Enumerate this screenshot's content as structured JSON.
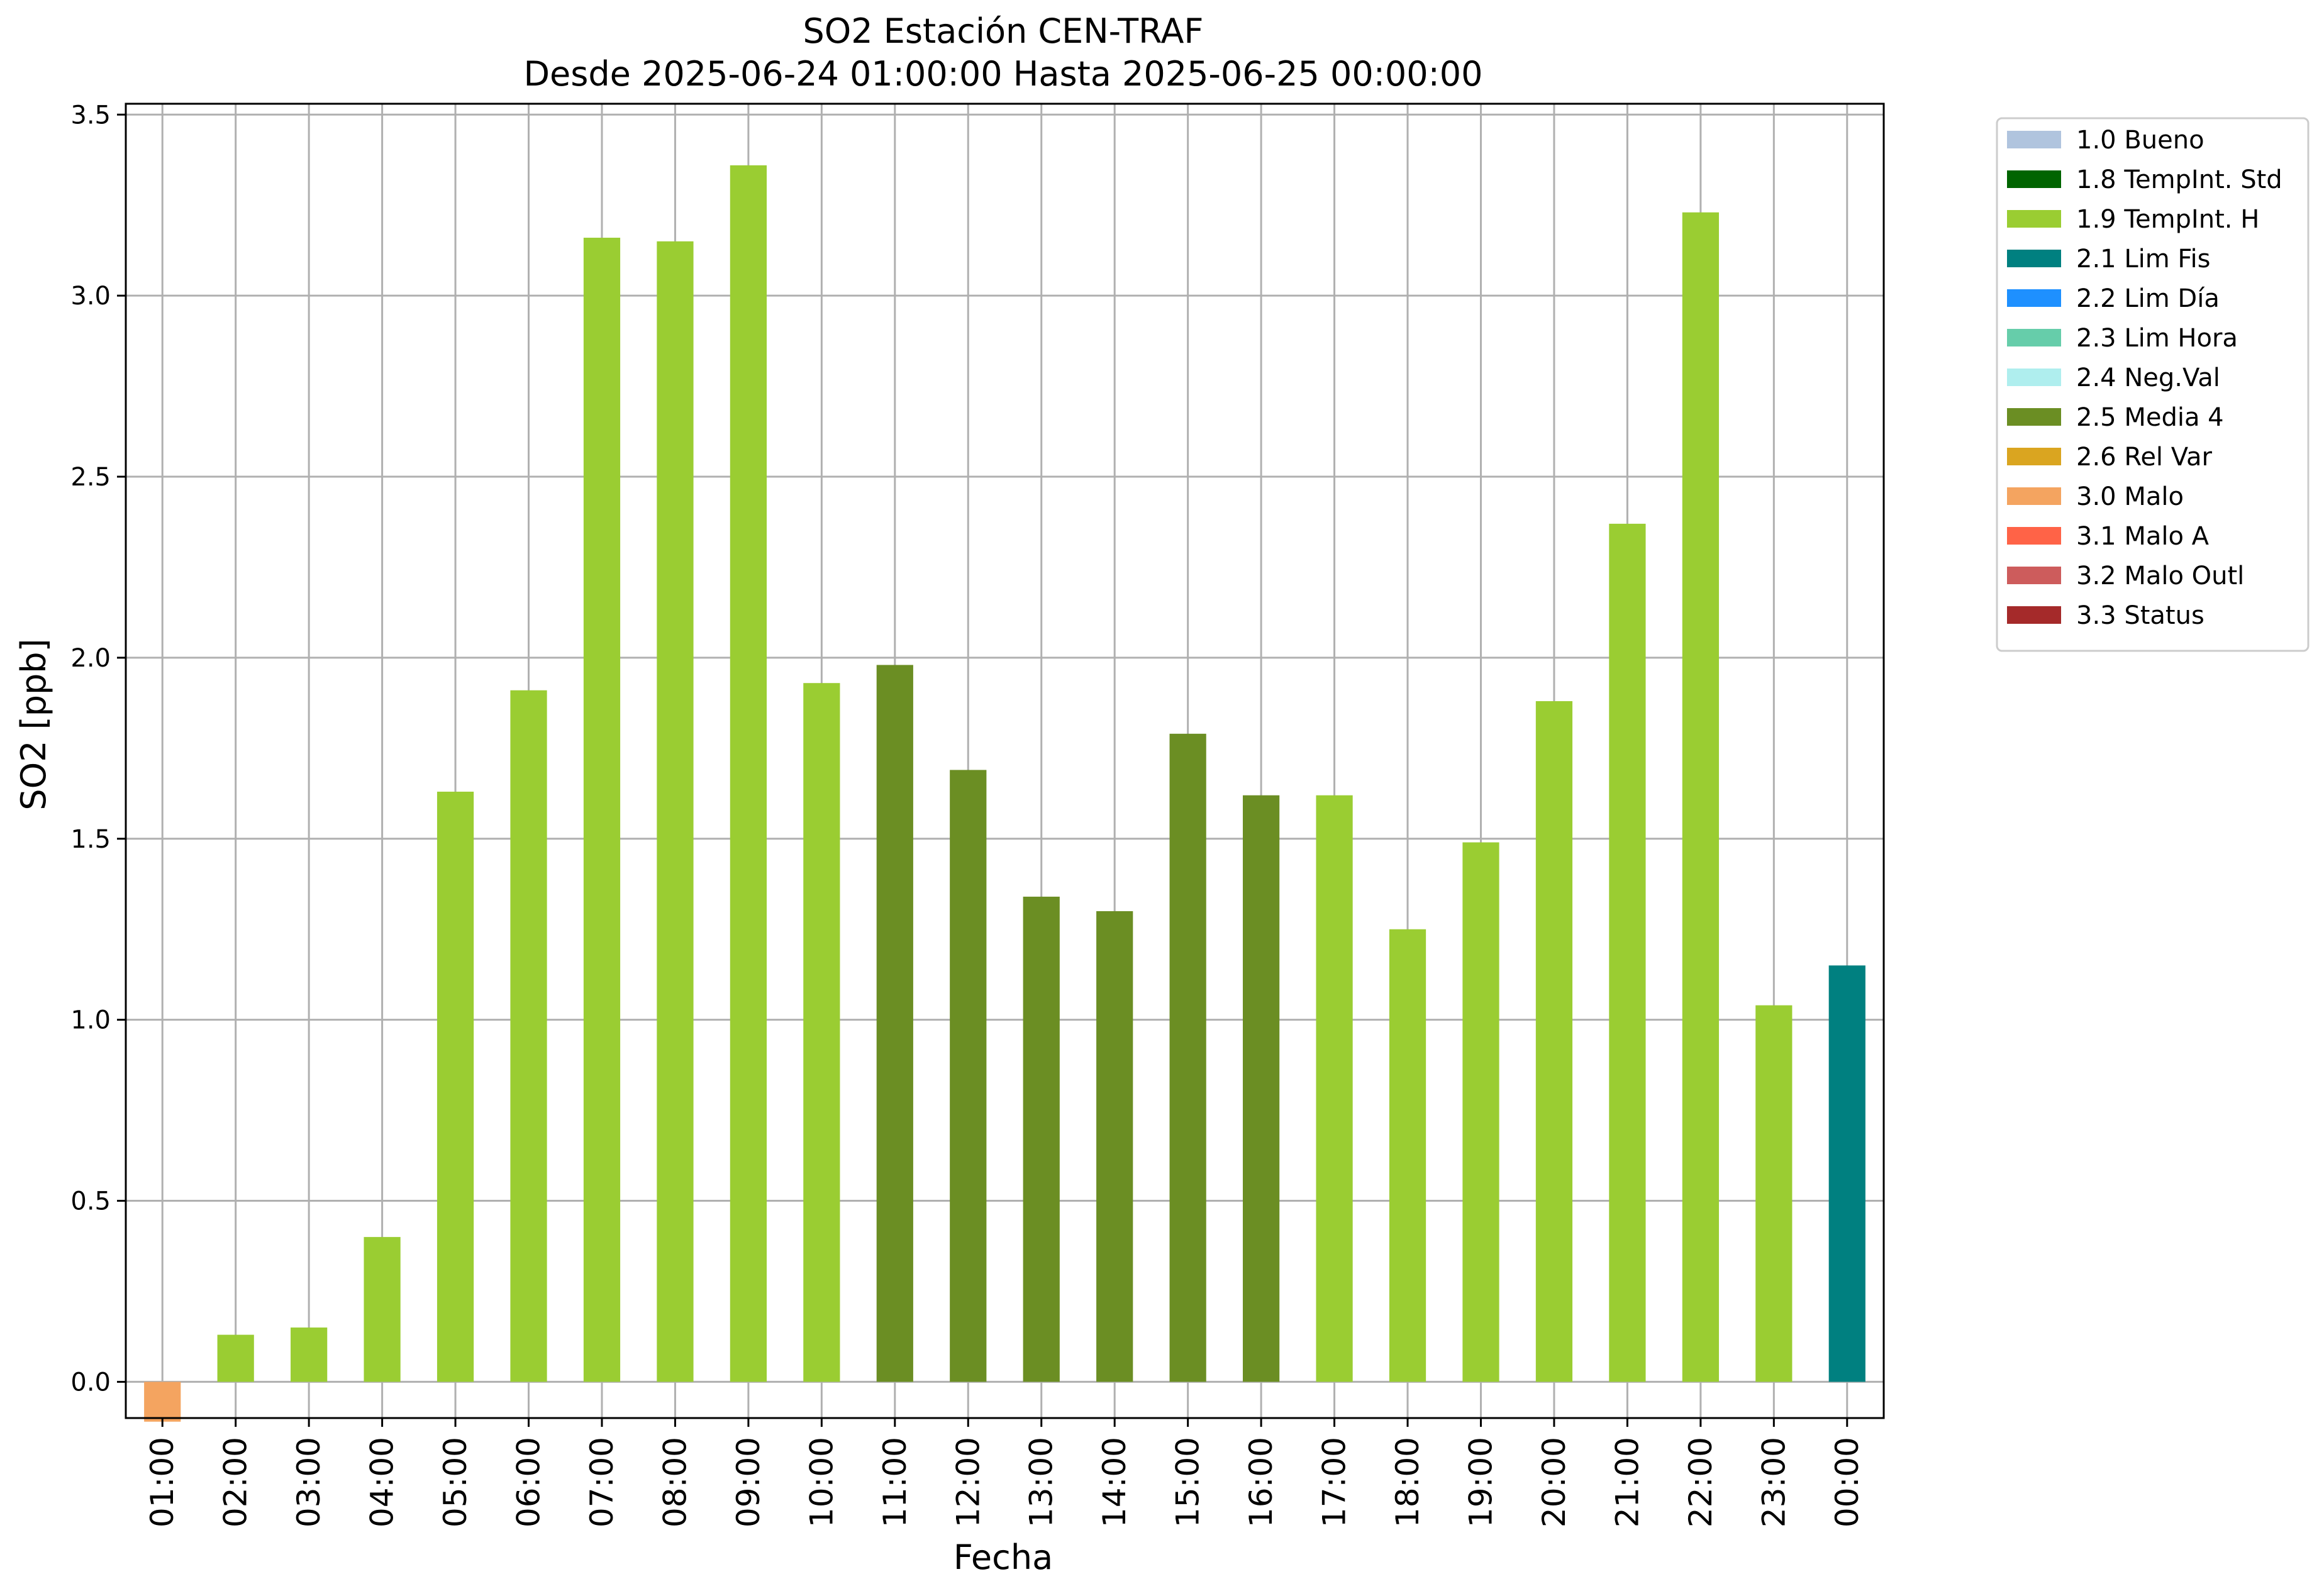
{
  "chart_data": {
    "type": "bar",
    "title": "SO2 Estación CEN-TRAF",
    "subtitle": "Desde 2025-06-24 01:00:00 Hasta 2025-06-25 00:00:00",
    "xlabel": "Fecha",
    "ylabel": "SO2 [ppb]",
    "ylim": [
      -0.1,
      3.53
    ],
    "yticks": [
      "0.0",
      "0.5",
      "1.0",
      "1.5",
      "2.0",
      "2.5",
      "3.0",
      "3.5"
    ],
    "grid": true,
    "legend_position": "outside-top-right",
    "categories": [
      "01:00",
      "02:00",
      "03:00",
      "04:00",
      "05:00",
      "06:00",
      "07:00",
      "08:00",
      "09:00",
      "10:00",
      "11:00",
      "12:00",
      "13:00",
      "14:00",
      "15:00",
      "16:00",
      "17:00",
      "18:00",
      "19:00",
      "20:00",
      "21:00",
      "22:00",
      "23:00",
      "00:00"
    ],
    "values": [
      -0.11,
      0.13,
      0.15,
      0.4,
      1.63,
      1.91,
      3.16,
      3.15,
      3.36,
      1.93,
      1.98,
      1.69,
      1.34,
      1.3,
      1.79,
      1.62,
      1.62,
      1.25,
      1.49,
      1.88,
      2.37,
      3.23,
      1.04,
      1.15
    ],
    "flags": [
      "3.0 Malo",
      "1.9 TempInt. H",
      "1.9 TempInt. H",
      "1.9 TempInt. H",
      "1.9 TempInt. H",
      "1.9 TempInt. H",
      "1.9 TempInt. H",
      "1.9 TempInt. H",
      "1.9 TempInt. H",
      "1.9 TempInt. H",
      "2.5 Media 4",
      "2.5 Media 4",
      "2.5 Media 4",
      "2.5 Media 4",
      "2.5 Media 4",
      "2.5 Media 4",
      "1.9 TempInt. H",
      "1.9 TempInt. H",
      "1.9 TempInt. H",
      "1.9 TempInt. H",
      "1.9 TempInt. H",
      "1.9 TempInt. H",
      "1.9 TempInt. H",
      "2.1 Lim Fis"
    ],
    "legend": [
      {
        "label": "1.0 Bueno",
        "color": "#b0c4de"
      },
      {
        "label": "1.8 TempInt. Std",
        "color": "#006400"
      },
      {
        "label": "1.9 TempInt. H",
        "color": "#9acd32"
      },
      {
        "label": "2.1 Lim Fis",
        "color": "#008080"
      },
      {
        "label": "2.2 Lim Día",
        "color": "#1e90ff"
      },
      {
        "label": "2.3 Lim Hora",
        "color": "#66cdaa"
      },
      {
        "label": "2.4 Neg.Val",
        "color": "#afeeee"
      },
      {
        "label": "2.5 Media 4",
        "color": "#6b8e23"
      },
      {
        "label": "2.6 Rel Var",
        "color": "#daa520"
      },
      {
        "label": "3.0 Malo",
        "color": "#f4a460"
      },
      {
        "label": "3.1 Malo A",
        "color": "#ff6347"
      },
      {
        "label": "3.2 Malo Outl",
        "color": "#cd5c5c"
      },
      {
        "label": "3.3 Status",
        "color": "#a52a2a"
      }
    ],
    "colors": {
      "grid": "#b0b0b0",
      "axes": "#000000"
    }
  }
}
